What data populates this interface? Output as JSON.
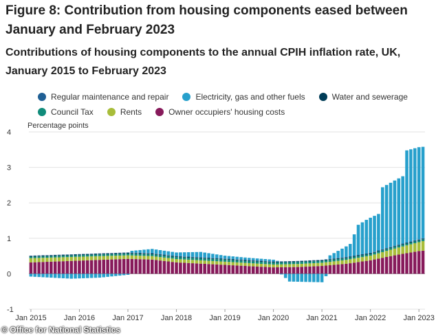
{
  "figure": {
    "title": "Figure 8: Contribution from housing components eased between January and February 2023",
    "subtitle": "Contributions of housing components to the annual CPIH inflation rate, UK, January 2015 to February 2023"
  },
  "legend": {
    "row1": [
      {
        "label": "Regular maintenance and repair",
        "color": "#206095"
      },
      {
        "label": "Electricity, gas and other fuels",
        "color": "#27a0cc"
      },
      {
        "label": "Water and sewerage",
        "color": "#003c57"
      }
    ],
    "row2": [
      {
        "label": "Council Tax",
        "color": "#118c7b"
      },
      {
        "label": "Rents",
        "color": "#a8bd3a"
      },
      {
        "label": "Owner occupiers' housing costs",
        "color": "#871a5b"
      }
    ]
  },
  "credit": "Office for National Statistics",
  "chart_data": {
    "type": "bar",
    "stacked": true,
    "ylabel": "Percentage points",
    "ylim": [
      -1,
      4
    ],
    "yticks": [
      -1,
      0,
      1,
      2,
      3,
      4
    ],
    "x_tick_labels": [
      "Jan 2015",
      "Jan 2016",
      "Jan 2017",
      "Jan 2018",
      "Jan 2019",
      "Jan 2020",
      "Jan 2021",
      "Jan 2022",
      "Jan 2023"
    ],
    "x_start": "2015-01",
    "months": 98,
    "keyframes_note": "monthly values interpolated between month indices listed in each series",
    "series": [
      {
        "name": "Owner occupiers' housing costs",
        "color": "#871a5b",
        "points": [
          [
            0,
            0.32
          ],
          [
            12,
            0.37
          ],
          [
            24,
            0.42
          ],
          [
            30,
            0.4
          ],
          [
            36,
            0.32
          ],
          [
            48,
            0.25
          ],
          [
            60,
            0.18
          ],
          [
            66,
            0.19
          ],
          [
            72,
            0.22
          ],
          [
            78,
            0.28
          ],
          [
            84,
            0.38
          ],
          [
            90,
            0.52
          ],
          [
            96,
            0.64
          ],
          [
            97,
            0.65
          ]
        ]
      },
      {
        "name": "Rents",
        "color": "#a8bd3a",
        "points": [
          [
            0,
            0.12
          ],
          [
            24,
            0.1
          ],
          [
            48,
            0.09
          ],
          [
            60,
            0.08
          ],
          [
            72,
            0.09
          ],
          [
            84,
            0.13
          ],
          [
            96,
            0.25
          ],
          [
            97,
            0.27
          ]
        ]
      },
      {
        "name": "Council Tax",
        "color": "#118c7b",
        "points": [
          [
            0,
            0.04
          ],
          [
            48,
            0.06
          ],
          [
            84,
            0.05
          ],
          [
            97,
            0.05
          ]
        ]
      },
      {
        "name": "Water and sewerage",
        "color": "#003c57",
        "points": [
          [
            0,
            0.02
          ],
          [
            97,
            0.02
          ]
        ]
      },
      {
        "name": "Regular maintenance and repair",
        "color": "#206095",
        "points": [
          [
            0,
            0.01
          ],
          [
            97,
            0.01
          ]
        ]
      },
      {
        "name": "Electricity, gas and other fuels",
        "color": "#27a0cc",
        "points": [
          [
            0,
            -0.08
          ],
          [
            10,
            -0.14
          ],
          [
            17,
            -0.11
          ],
          [
            24,
            -0.03
          ],
          [
            25,
            0.05
          ],
          [
            30,
            0.12
          ],
          [
            36,
            0.1
          ],
          [
            42,
            0.15
          ],
          [
            48,
            0.08
          ],
          [
            54,
            0.06
          ],
          [
            60,
            0.05
          ],
          [
            62,
            -0.02
          ],
          [
            64,
            -0.22
          ],
          [
            72,
            -0.24
          ],
          [
            74,
            0.1
          ],
          [
            77,
            0.25
          ],
          [
            79,
            0.35
          ],
          [
            81,
            0.85
          ],
          [
            83,
            0.95
          ],
          [
            84,
            0.99
          ],
          [
            86,
            1.03
          ],
          [
            87,
            1.75
          ],
          [
            92,
            1.9
          ],
          [
            93,
            2.6
          ],
          [
            96,
            2.6
          ],
          [
            97,
            2.58
          ]
        ]
      }
    ]
  }
}
